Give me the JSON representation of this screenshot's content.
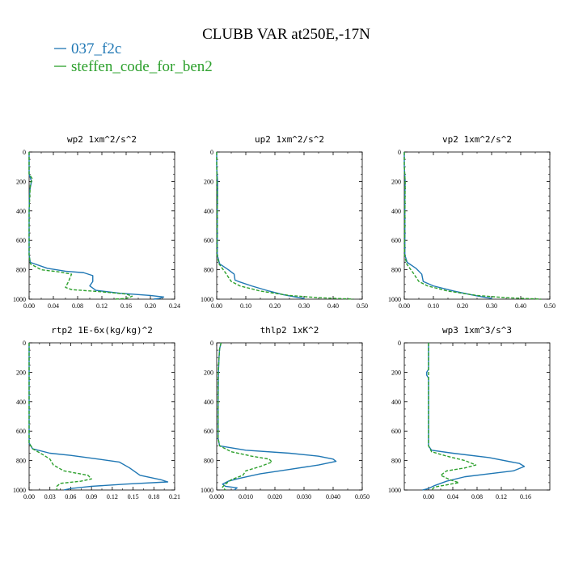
{
  "title": "CLUBB VAR at250E,-17N",
  "colors": {
    "s1": "#1f77b4",
    "s2": "#2ca02c",
    "axis": "#000000"
  },
  "chart_data": [
    {
      "type": "line",
      "title": "wp2  1xm^2/s^2",
      "xlim": [
        0,
        0.24
      ],
      "xticks": [
        0.0,
        0.04,
        0.08,
        0.12,
        0.16,
        0.2,
        0.24
      ],
      "xtick_labels": [
        "0.00",
        "0.04",
        "0.08",
        "0.12",
        "0.16",
        "0.20",
        "0.24"
      ],
      "ylim": [
        1000,
        0
      ],
      "yticks": [
        0,
        200,
        400,
        600,
        800,
        1000
      ],
      "series": [
        {
          "name": "037_f2c",
          "points": [
            [
              0.0,
              0
            ],
            [
              0.0,
              150
            ],
            [
              0.004,
              200
            ],
            [
              0.001,
              260
            ],
            [
              0.0,
              400
            ],
            [
              0.0,
              700
            ],
            [
              0.002,
              750
            ],
            [
              0.03,
              790
            ],
            [
              0.06,
              810
            ],
            [
              0.09,
              820
            ],
            [
              0.105,
              840
            ],
            [
              0.105,
              880
            ],
            [
              0.1,
              910
            ],
            [
              0.11,
              940
            ],
            [
              0.15,
              960
            ],
            [
              0.2,
              975
            ],
            [
              0.222,
              985
            ],
            [
              0.215,
              995
            ],
            [
              0.205,
              1000
            ]
          ]
        },
        {
          "name": "steffen_code_for_ben2",
          "points": [
            [
              0.0,
              0
            ],
            [
              0.0,
              150
            ],
            [
              0.005,
              180
            ],
            [
              0.002,
              220
            ],
            [
              0.0,
              400
            ],
            [
              0.0,
              700
            ],
            [
              0.002,
              760
            ],
            [
              0.02,
              800
            ],
            [
              0.05,
              815
            ],
            [
              0.07,
              830
            ],
            [
              0.065,
              880
            ],
            [
              0.06,
              920
            ],
            [
              0.07,
              935
            ],
            [
              0.12,
              950
            ],
            [
              0.16,
              965
            ],
            [
              0.17,
              980
            ],
            [
              0.16,
              995
            ],
            [
              0.14,
              1000
            ]
          ]
        }
      ]
    },
    {
      "type": "line",
      "title": "up2  1xm^2/s^2",
      "xlim": [
        0,
        0.5
      ],
      "xticks": [
        0.0,
        0.1,
        0.2,
        0.3,
        0.4,
        0.5
      ],
      "xtick_labels": [
        "0.00",
        "0.10",
        "0.20",
        "0.30",
        "0.40",
        "0.50"
      ],
      "ylim": [
        1000,
        0
      ],
      "yticks": [
        0,
        200,
        400,
        600,
        800,
        1000
      ],
      "series": [
        {
          "name": "037_f2c",
          "points": [
            [
              0.0,
              0
            ],
            [
              0.0,
              100
            ],
            [
              0.003,
              200
            ],
            [
              0.003,
              300
            ],
            [
              0.002,
              400
            ],
            [
              0.002,
              700
            ],
            [
              0.01,
              760
            ],
            [
              0.04,
              800
            ],
            [
              0.06,
              830
            ],
            [
              0.063,
              870
            ],
            [
              0.075,
              880
            ],
            [
              0.12,
              910
            ],
            [
              0.18,
              945
            ],
            [
              0.23,
              970
            ],
            [
              0.27,
              985
            ],
            [
              0.3,
              995
            ],
            [
              0.3,
              1000
            ]
          ]
        },
        {
          "name": "steffen_code_for_ben2",
          "points": [
            [
              0.0,
              0
            ],
            [
              0.0,
              100
            ],
            [
              0.002,
              300
            ],
            [
              0.001,
              700
            ],
            [
              0.008,
              760
            ],
            [
              0.03,
              820
            ],
            [
              0.04,
              850
            ],
            [
              0.05,
              880
            ],
            [
              0.08,
              910
            ],
            [
              0.15,
              945
            ],
            [
              0.25,
              975
            ],
            [
              0.35,
              990
            ],
            [
              0.45,
              998
            ],
            [
              0.47,
              1000
            ]
          ]
        }
      ]
    },
    {
      "type": "line",
      "title": "vp2  1xm^2/s^2",
      "xlim": [
        0,
        0.5
      ],
      "xticks": [
        0.0,
        0.1,
        0.2,
        0.3,
        0.4,
        0.5
      ],
      "xtick_labels": [
        "0.00",
        "0.10",
        "0.20",
        "0.30",
        "0.40",
        "0.50"
      ],
      "ylim": [
        1000,
        0
      ],
      "yticks": [
        0,
        200,
        400,
        600,
        800,
        1000
      ],
      "series": [
        {
          "name": "037_f2c",
          "points": [
            [
              0.0,
              0
            ],
            [
              0.0,
              100
            ],
            [
              0.003,
              200
            ],
            [
              0.002,
              300
            ],
            [
              0.002,
              700
            ],
            [
              0.01,
              750
            ],
            [
              0.04,
              790
            ],
            [
              0.06,
              830
            ],
            [
              0.063,
              860
            ],
            [
              0.065,
              880
            ],
            [
              0.1,
              910
            ],
            [
              0.17,
              945
            ],
            [
              0.23,
              970
            ],
            [
              0.27,
              985
            ],
            [
              0.3,
              995
            ],
            [
              0.3,
              1000
            ]
          ]
        },
        {
          "name": "steffen_code_for_ben2",
          "points": [
            [
              0.0,
              0
            ],
            [
              0.0,
              100
            ],
            [
              0.003,
              200
            ],
            [
              0.001,
              700
            ],
            [
              0.008,
              760
            ],
            [
              0.03,
              820
            ],
            [
              0.04,
              850
            ],
            [
              0.05,
              880
            ],
            [
              0.08,
              910
            ],
            [
              0.15,
              945
            ],
            [
              0.25,
              975
            ],
            [
              0.35,
              990
            ],
            [
              0.45,
              998
            ],
            [
              0.47,
              1000
            ]
          ]
        }
      ]
    },
    {
      "type": "line",
      "title": "rtp2  1E-6x(kg/kg)^2",
      "xlim": [
        0,
        0.21
      ],
      "xticks": [
        0.0,
        0.03,
        0.06,
        0.09,
        0.12,
        0.15,
        0.18,
        0.21
      ],
      "xtick_labels": [
        "0.00",
        "0.03",
        "0.06",
        "0.09",
        "0.12",
        "0.15",
        "0.18",
        "0.21"
      ],
      "ylim": [
        1000,
        0
      ],
      "yticks": [
        0,
        200,
        400,
        600,
        800,
        1000
      ],
      "series": [
        {
          "name": "037_f2c",
          "points": [
            [
              0.0,
              0
            ],
            [
              0.0,
              680
            ],
            [
              0.005,
              720
            ],
            [
              0.03,
              750
            ],
            [
              0.06,
              765
            ],
            [
              0.1,
              790
            ],
            [
              0.13,
              810
            ],
            [
              0.145,
              850
            ],
            [
              0.16,
              900
            ],
            [
              0.19,
              930
            ],
            [
              0.2,
              945
            ],
            [
              0.14,
              960
            ],
            [
              0.09,
              975
            ],
            [
              0.06,
              990
            ],
            [
              0.05,
              1000
            ]
          ]
        },
        {
          "name": "steffen_code_for_ben2",
          "points": [
            [
              0.0,
              0
            ],
            [
              0.0,
              680
            ],
            [
              0.005,
              720
            ],
            [
              0.02,
              760
            ],
            [
              0.03,
              790
            ],
            [
              0.035,
              830
            ],
            [
              0.05,
              870
            ],
            [
              0.085,
              900
            ],
            [
              0.09,
              925
            ],
            [
              0.075,
              940
            ],
            [
              0.045,
              955
            ],
            [
              0.04,
              975
            ],
            [
              0.04,
              1000
            ]
          ]
        }
      ]
    },
    {
      "type": "line",
      "title": "thlp2  1xK^2",
      "xlim": [
        0,
        0.05
      ],
      "xticks": [
        0.0,
        0.01,
        0.02,
        0.03,
        0.04,
        0.05
      ],
      "xtick_labels": [
        "0.000",
        "0.010",
        "0.020",
        "0.030",
        "0.040",
        "0.050"
      ],
      "ylim": [
        1000,
        0
      ],
      "yticks": [
        0,
        200,
        400,
        600,
        800,
        1000
      ],
      "series": [
        {
          "name": "037_f2c",
          "points": [
            [
              0.0015,
              0
            ],
            [
              0.001,
              40
            ],
            [
              0.0008,
              100
            ],
            [
              0.0006,
              200
            ],
            [
              0.0005,
              400
            ],
            [
              0.0005,
              650
            ],
            [
              0.001,
              700
            ],
            [
              0.01,
              730
            ],
            [
              0.025,
              750
            ],
            [
              0.035,
              770
            ],
            [
              0.04,
              790
            ],
            [
              0.041,
              805
            ],
            [
              0.035,
              830
            ],
            [
              0.025,
              860
            ],
            [
              0.015,
              890
            ],
            [
              0.008,
              920
            ],
            [
              0.004,
              940
            ],
            [
              0.002,
              960
            ],
            [
              0.003,
              975
            ],
            [
              0.007,
              985
            ],
            [
              0.006,
              1000
            ]
          ]
        },
        {
          "name": "steffen_code_for_ben2",
          "points": [
            [
              0.0015,
              0
            ],
            [
              0.001,
              40
            ],
            [
              0.0005,
              200
            ],
            [
              0.0005,
              650
            ],
            [
              0.001,
              700
            ],
            [
              0.005,
              740
            ],
            [
              0.012,
              770
            ],
            [
              0.018,
              790
            ],
            [
              0.019,
              810
            ],
            [
              0.015,
              840
            ],
            [
              0.01,
              870
            ],
            [
              0.009,
              900
            ],
            [
              0.005,
              930
            ],
            [
              0.003,
              960
            ],
            [
              0.002,
              980
            ],
            [
              0.003,
              1000
            ]
          ]
        }
      ]
    },
    {
      "type": "line",
      "title": "wp3  1xm^3/s^3",
      "xlim": [
        -0.04,
        0.2
      ],
      "xticks": [
        0.0,
        0.04,
        0.08,
        0.12,
        0.16
      ],
      "xtick_labels": [
        "0.00",
        "0.04",
        "0.08",
        "0.12",
        "0.16"
      ],
      "ylim": [
        1000,
        0
      ],
      "yticks": [
        0,
        200,
        400,
        600,
        800,
        1000
      ],
      "series": [
        {
          "name": "037_f2c",
          "points": [
            [
              0.0,
              0
            ],
            [
              0.0,
              180
            ],
            [
              -0.003,
              200
            ],
            [
              -0.003,
              220
            ],
            [
              0.0,
              240
            ],
            [
              0.0,
              700
            ],
            [
              0.005,
              730
            ],
            [
              0.04,
              750
            ],
            [
              0.1,
              780
            ],
            [
              0.15,
              820
            ],
            [
              0.158,
              840
            ],
            [
              0.14,
              870
            ],
            [
              0.1,
              890
            ],
            [
              0.06,
              910
            ],
            [
              0.03,
              940
            ],
            [
              0.01,
              970
            ],
            [
              0.0,
              990
            ],
            [
              -0.01,
              1000
            ]
          ]
        },
        {
          "name": "steffen_code_for_ben2",
          "points": [
            [
              0.0,
              0
            ],
            [
              0.0,
              700
            ],
            [
              0.005,
              740
            ],
            [
              0.03,
              770
            ],
            [
              0.06,
              800
            ],
            [
              0.078,
              830
            ],
            [
              0.06,
              850
            ],
            [
              0.03,
              870
            ],
            [
              0.02,
              900
            ],
            [
              0.035,
              930
            ],
            [
              0.05,
              950
            ],
            [
              0.03,
              965
            ],
            [
              0.01,
              980
            ],
            [
              0.005,
              1000
            ]
          ]
        }
      ]
    }
  ]
}
